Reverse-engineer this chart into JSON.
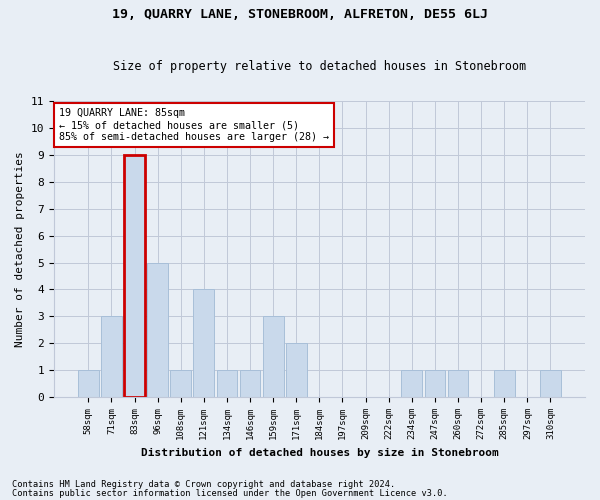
{
  "title1": "19, QUARRY LANE, STONEBROOM, ALFRETON, DE55 6LJ",
  "title2": "Size of property relative to detached houses in Stonebroom",
  "xlabel": "Distribution of detached houses by size in Stonebroom",
  "ylabel": "Number of detached properties",
  "categories": [
    "58sqm",
    "71sqm",
    "83sqm",
    "96sqm",
    "108sqm",
    "121sqm",
    "134sqm",
    "146sqm",
    "159sqm",
    "171sqm",
    "184sqm",
    "197sqm",
    "209sqm",
    "222sqm",
    "234sqm",
    "247sqm",
    "260sqm",
    "272sqm",
    "285sqm",
    "297sqm",
    "310sqm"
  ],
  "values": [
    1,
    3,
    9,
    5,
    1,
    4,
    1,
    1,
    3,
    2,
    0,
    0,
    0,
    0,
    1,
    1,
    1,
    0,
    1,
    0,
    1
  ],
  "highlight_index": 2,
  "bar_color": "#c9d9eb",
  "bar_edge_color": "#a8bfd8",
  "highlight_bar_color": "#c9d9eb",
  "highlight_border_color": "#cc0000",
  "grid_color": "#c0c8d8",
  "bg_color": "#e8eef5",
  "annotation_text": "19 QUARRY LANE: 85sqm\n← 15% of detached houses are smaller (5)\n85% of semi-detached houses are larger (28) →",
  "annotation_box_color": "#ffffff",
  "annotation_border_color": "#cc0000",
  "footer1": "Contains HM Land Registry data © Crown copyright and database right 2024.",
  "footer2": "Contains public sector information licensed under the Open Government Licence v3.0.",
  "ylim": [
    0,
    11
  ],
  "yticks": [
    0,
    1,
    2,
    3,
    4,
    5,
    6,
    7,
    8,
    9,
    10,
    11
  ]
}
